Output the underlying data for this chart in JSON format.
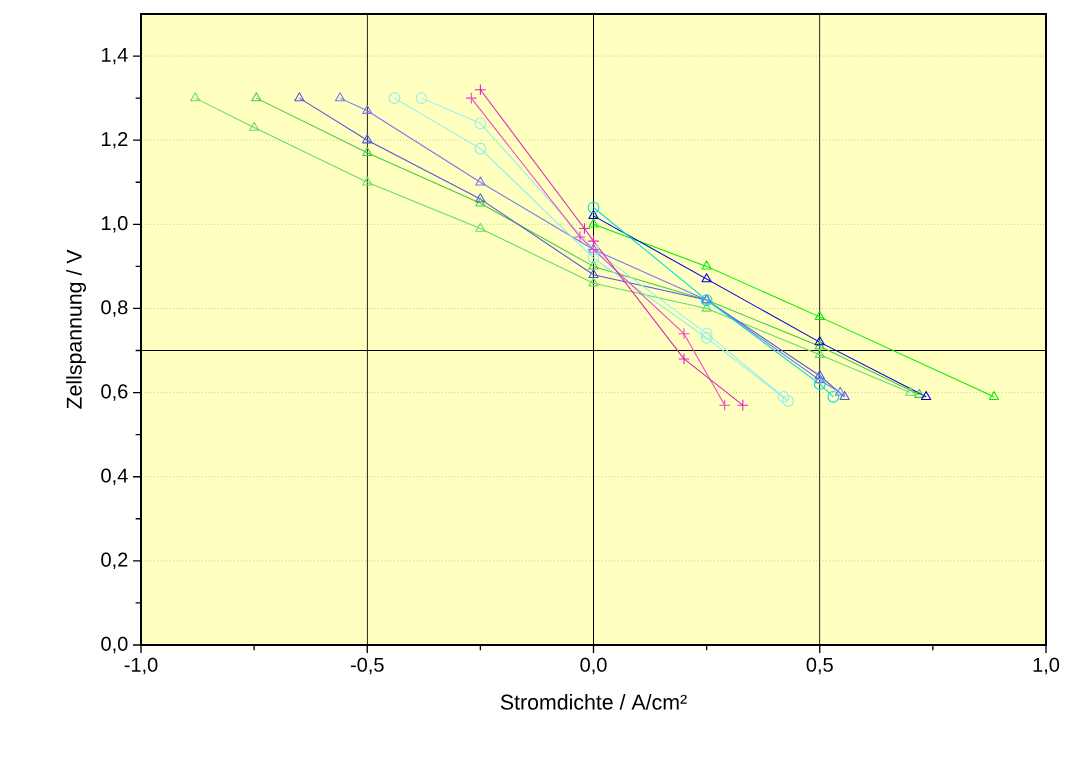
{
  "chart_data": {
    "type": "line",
    "xlabel": "Stromdichte / A/cm²",
    "ylabel": "Zellspannung / V",
    "xlim": [
      -1.0,
      1.0
    ],
    "ylim": [
      0.0,
      1.5
    ],
    "xticks": [
      {
        "value": -1.0,
        "label": "-1,0"
      },
      {
        "value": -0.5,
        "label": "-0,5"
      },
      {
        "value": 0.0,
        "label": "0,0"
      },
      {
        "value": 0.5,
        "label": "0,5"
      },
      {
        "value": 1.0,
        "label": "1,0"
      }
    ],
    "yticks": [
      {
        "value": 0.0,
        "label": "0,0"
      },
      {
        "value": 0.2,
        "label": "0,2"
      },
      {
        "value": 0.4,
        "label": "0,4"
      },
      {
        "value": 0.6,
        "label": "0,6"
      },
      {
        "value": 0.8,
        "label": "0,8"
      },
      {
        "value": 1.0,
        "label": "1,0"
      },
      {
        "value": 1.2,
        "label": "1,2"
      },
      {
        "value": 1.4,
        "label": "1,4"
      }
    ],
    "grid": "y",
    "line_style": "solid",
    "ref_lines": [
      {
        "axis": "x",
        "value": -0.5,
        "color": "#000000"
      },
      {
        "axis": "x",
        "value": 0.0,
        "color": "#000000"
      },
      {
        "axis": "x",
        "value": 0.5,
        "color": "#000000"
      },
      {
        "axis": "y",
        "value": 0.7,
        "color": "#000000"
      }
    ],
    "series": [
      {
        "color": "#66dd66",
        "marker": "triangle",
        "x": [
          -0.88,
          -0.75,
          -0.5,
          -0.25,
          0.0,
          0.25,
          0.5,
          0.7
        ],
        "values": [
          1.3,
          1.23,
          1.1,
          0.99,
          0.86,
          0.8,
          0.69,
          0.6
        ]
      },
      {
        "color": "#44cc44",
        "marker": "triangle",
        "x": [
          -0.745,
          -0.5,
          -0.25,
          0.0,
          0.25,
          0.5,
          0.72
        ],
        "values": [
          1.3,
          1.17,
          1.05,
          0.9,
          0.82,
          0.71,
          0.595
        ]
      },
      {
        "color": "#5555dd",
        "marker": "triangle",
        "x": [
          -0.65,
          -0.5,
          -0.25,
          0.0,
          0.25,
          0.5,
          0.555
        ],
        "values": [
          1.3,
          1.2,
          1.06,
          0.88,
          0.82,
          0.64,
          0.59
        ]
      },
      {
        "color": "#7777ee",
        "marker": "triangle",
        "x": [
          -0.56,
          -0.5,
          -0.25,
          0.0,
          0.25,
          0.5,
          0.545
        ],
        "values": [
          1.3,
          1.27,
          1.1,
          0.94,
          0.82,
          0.63,
          0.6
        ]
      },
      {
        "color": "#88eeee",
        "marker": "circle",
        "x": [
          -0.44,
          -0.25,
          0.0,
          0.25,
          0.43
        ],
        "values": [
          1.3,
          1.18,
          0.92,
          0.73,
          0.58
        ]
      },
      {
        "color": "#99eeee",
        "marker": "circle",
        "x": [
          -0.38,
          -0.25,
          0.0,
          0.25,
          0.42
        ],
        "values": [
          1.3,
          1.24,
          0.94,
          0.74,
          0.59
        ]
      },
      {
        "color": "#ee44cc",
        "marker": "cross",
        "x": [
          -0.27,
          -0.03,
          0.0,
          0.2,
          0.29
        ],
        "values": [
          1.3,
          0.97,
          0.94,
          0.74,
          0.57
        ]
      },
      {
        "color": "#dd22bb",
        "marker": "cross",
        "x": [
          -0.25,
          -0.02,
          0.0,
          0.2,
          0.33
        ],
        "values": [
          1.32,
          0.99,
          0.96,
          0.68,
          0.57
        ]
      },
      {
        "color": "#00ee00",
        "marker": "triangle",
        "x": [
          0.0,
          0.25,
          0.5,
          0.885
        ],
        "values": [
          1.0,
          0.9,
          0.78,
          0.59
        ]
      },
      {
        "color": "#0000dd",
        "marker": "triangle",
        "x": [
          0.0,
          0.25,
          0.5,
          0.735
        ],
        "values": [
          1.02,
          0.87,
          0.72,
          0.59
        ]
      },
      {
        "color": "#00dddd",
        "marker": "circle",
        "x": [
          0.0,
          0.25,
          0.5,
          0.53
        ],
        "values": [
          1.04,
          0.82,
          0.62,
          0.59
        ]
      }
    ]
  }
}
